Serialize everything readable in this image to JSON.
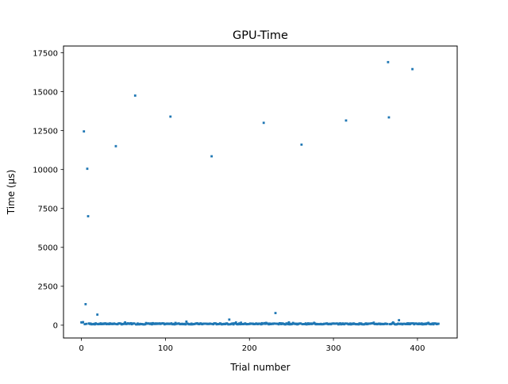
{
  "chart_data": {
    "type": "scatter",
    "title": "GPU-Time",
    "xlabel": "Trial number",
    "ylabel": "Time (µs)",
    "xlim": [
      -21.3,
      447.3
    ],
    "ylim": [
      -822,
      17935
    ],
    "x_ticks": [
      0,
      100,
      200,
      300,
      400
    ],
    "x_tick_labels": [
      "0",
      "100",
      "200",
      "300",
      "400"
    ],
    "y_ticks": [
      0,
      2500,
      5000,
      7500,
      10000,
      12500,
      15000,
      17500
    ],
    "y_tick_labels": [
      "0",
      "2500",
      "5000",
      "7500",
      "10000",
      "12500",
      "15000",
      "17500"
    ],
    "grid": false,
    "legend": "none",
    "color": "#1f77b4",
    "trial_count": 426,
    "baseline_range": [
      20,
      200
    ],
    "outliers": [
      {
        "x": 3,
        "y": 12450
      },
      {
        "x": 5,
        "y": 1350
      },
      {
        "x": 7,
        "y": 10050
      },
      {
        "x": 8,
        "y": 7000
      },
      {
        "x": 19,
        "y": 680
      },
      {
        "x": 41,
        "y": 11500
      },
      {
        "x": 64,
        "y": 14750
      },
      {
        "x": 106,
        "y": 13400
      },
      {
        "x": 125,
        "y": 230
      },
      {
        "x": 155,
        "y": 10850
      },
      {
        "x": 176,
        "y": 360
      },
      {
        "x": 217,
        "y": 13000
      },
      {
        "x": 231,
        "y": 780
      },
      {
        "x": 262,
        "y": 11600
      },
      {
        "x": 315,
        "y": 13150
      },
      {
        "x": 365,
        "y": 16900
      },
      {
        "x": 366,
        "y": 13350
      },
      {
        "x": 378,
        "y": 320
      },
      {
        "x": 394,
        "y": 16450
      }
    ]
  }
}
